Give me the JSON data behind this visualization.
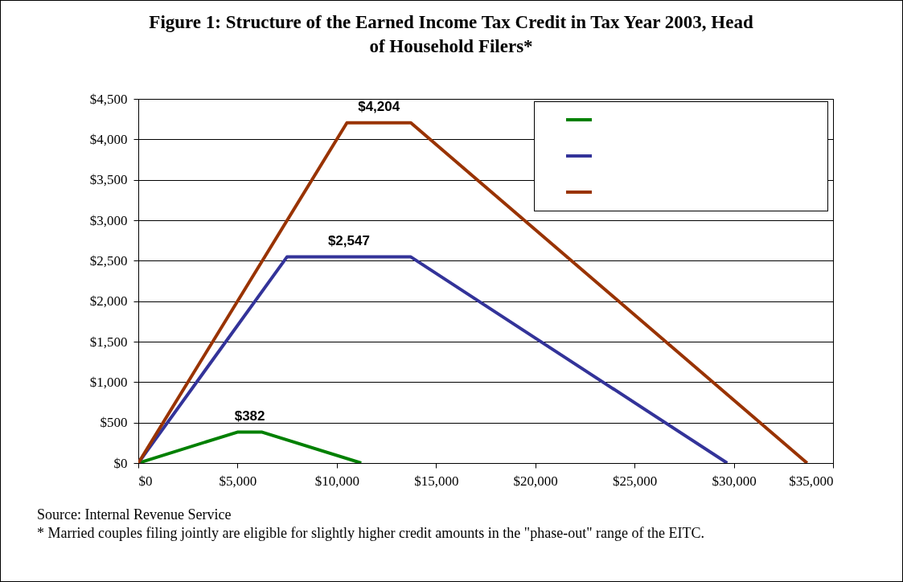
{
  "chart_data": {
    "type": "line",
    "title": "Figure 1: Structure of the Earned Income Tax Credit in Tax Year 2003, Head of Household Filers*",
    "series": [
      {
        "color": "#008000",
        "x": [
          0,
          4990,
          6240,
          11230
        ],
        "values": [
          0,
          382,
          382,
          0
        ]
      },
      {
        "color": "#333399",
        "x": [
          0,
          7490,
          13730,
          29666
        ],
        "values": [
          0,
          2547,
          2547,
          0
        ]
      },
      {
        "color": "#993300",
        "x": [
          0,
          10510,
          13730,
          33692
        ],
        "values": [
          0,
          4204,
          4204,
          0
        ]
      }
    ],
    "xlim": [
      0,
      35000
    ],
    "ylim": [
      0,
      4500
    ],
    "xticks": [
      {
        "value": 0,
        "label": "$0"
      },
      {
        "value": 5000,
        "label": "$5,000"
      },
      {
        "value": 10000,
        "label": "$10,000"
      },
      {
        "value": 15000,
        "label": "$15,000"
      },
      {
        "value": 20000,
        "label": "$20,000"
      },
      {
        "value": 25000,
        "label": "$25,000"
      },
      {
        "value": 30000,
        "label": "$30,000"
      },
      {
        "value": 35000,
        "label": "$35,000"
      }
    ],
    "yticks": [
      {
        "value": 0,
        "label": "$0"
      },
      {
        "value": 500,
        "label": "$500"
      },
      {
        "value": 1000,
        "label": "$1,000"
      },
      {
        "value": 1500,
        "label": "$1,500"
      },
      {
        "value": 2000,
        "label": "$2,000"
      },
      {
        "value": 2500,
        "label": "$2,500"
      },
      {
        "value": 3000,
        "label": "$3,000"
      },
      {
        "value": 3500,
        "label": "$3,500"
      },
      {
        "value": 4000,
        "label": "$4,000"
      },
      {
        "value": 4500,
        "label": "$4,500"
      }
    ],
    "grid": "y",
    "line_style": "solid",
    "annotations": [
      {
        "text": "$382",
        "x": 5615,
        "y": 382
      },
      {
        "text": "$2,547",
        "x": 10610,
        "y": 2547
      },
      {
        "text": "$4,204",
        "x": 12120,
        "y": 4204
      },
      "Source: Internal Revenue Service",
      "* Married couples filing jointly are eligible for slightly higher credit amounts in the \"phase-out\" range of the EITC."
    ]
  }
}
